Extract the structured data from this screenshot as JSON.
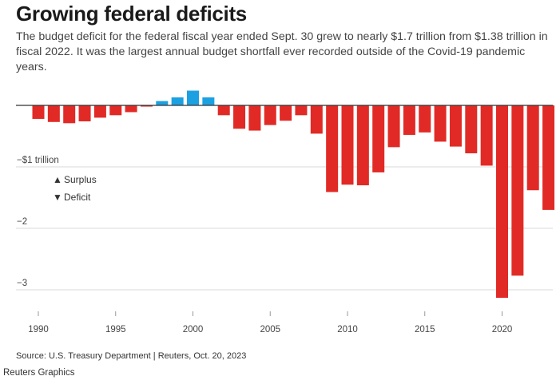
{
  "header": {
    "title": "Growing federal deficits",
    "subtitle": "The budget deficit for the federal fiscal year ended Sept. 30 grew to nearly $1.7 trillion from $1.38 trillion in fiscal 2022. It was the largest annual budget shortfall ever recorded outside of the Covid-19 pandemic years."
  },
  "legend": {
    "surplus": {
      "symbol": "▲",
      "label": "Surplus"
    },
    "deficit": {
      "symbol": "▼",
      "label": "Deficit"
    }
  },
  "footer": {
    "source": "Source: U.S. Treasury Department | Reuters, Oct. 20, 2023",
    "credit": "Reuters Graphics"
  },
  "colors": {
    "surplus": "#1ba1e2",
    "deficit": "#e12a26",
    "grid": "#d9d9d9",
    "zero_line": "#333333"
  },
  "chart_data": {
    "type": "bar",
    "title": "Growing federal deficits",
    "xlabel": "",
    "ylabel": "",
    "ylim": [
      -3.15,
      0.25
    ],
    "grid": true,
    "legend_position": "left",
    "y_ticks": [
      {
        "value": -1,
        "label": "−$1 trillion"
      },
      {
        "value": -2,
        "label": "−2"
      },
      {
        "value": -3,
        "label": "−3"
      }
    ],
    "x_ticks": [
      1990,
      1995,
      2000,
      2005,
      2010,
      2015,
      2020
    ],
    "categories": [
      1990,
      1991,
      1992,
      1993,
      1994,
      1995,
      1996,
      1997,
      1998,
      1999,
      2000,
      2001,
      2002,
      2003,
      2004,
      2005,
      2006,
      2007,
      2008,
      2009,
      2010,
      2011,
      2012,
      2013,
      2014,
      2015,
      2016,
      2017,
      2018,
      2019,
      2020,
      2021,
      2022,
      2023
    ],
    "values": [
      -0.22,
      -0.27,
      -0.29,
      -0.26,
      -0.2,
      -0.16,
      -0.11,
      -0.02,
      0.07,
      0.13,
      0.24,
      0.13,
      -0.16,
      -0.38,
      -0.41,
      -0.32,
      -0.25,
      -0.16,
      -0.46,
      -1.41,
      -1.29,
      -1.3,
      -1.09,
      -0.68,
      -0.48,
      -0.44,
      -0.59,
      -0.67,
      -0.78,
      -0.98,
      -3.13,
      -2.77,
      -1.38,
      -1.7
    ]
  }
}
